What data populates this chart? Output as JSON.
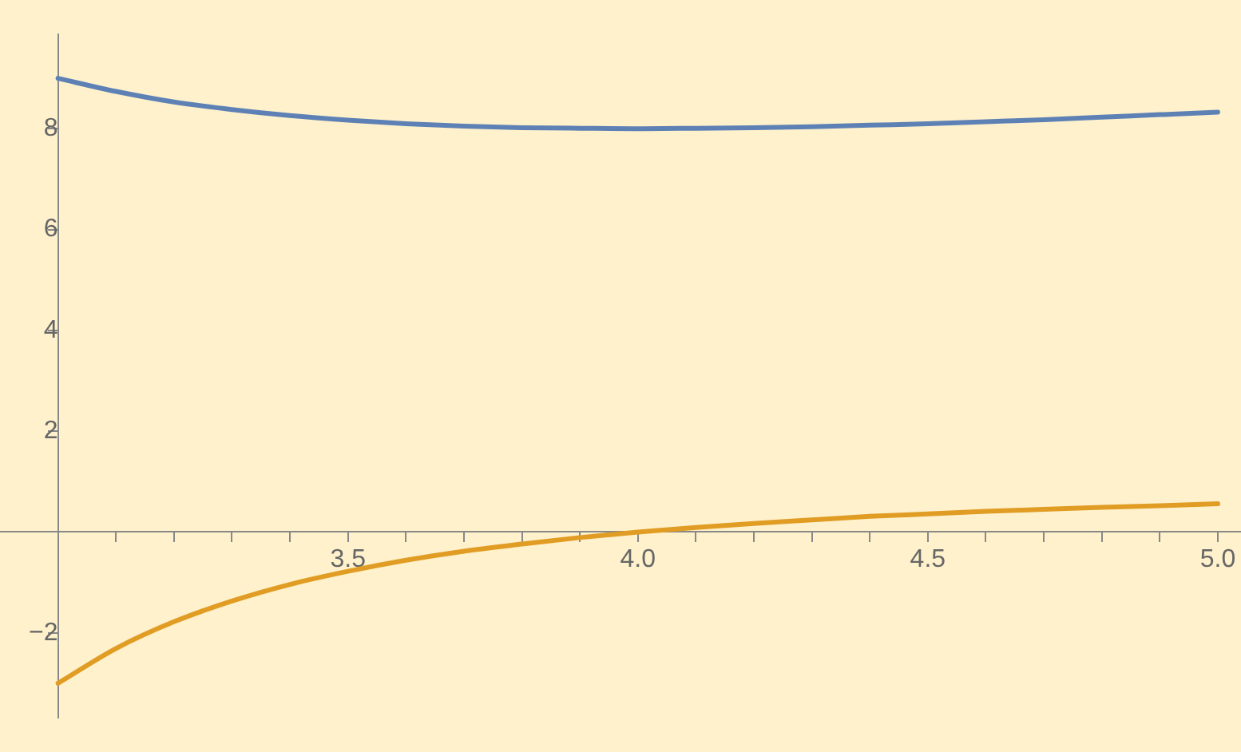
{
  "chart_data": {
    "type": "line",
    "x": [
      3.0,
      3.1,
      3.2,
      3.3,
      3.4,
      3.5,
      3.6,
      3.7,
      3.8,
      3.9,
      4.0,
      4.1,
      4.2,
      4.3,
      4.4,
      4.5,
      4.6,
      4.7,
      4.8,
      4.9,
      5.0
    ],
    "series": [
      {
        "color": "#5e81b5",
        "values": [
          9,
          8.74,
          8.53,
          8.38,
          8.26,
          8.17,
          8.1,
          8.05,
          8.02,
          8.01,
          8,
          8.01,
          8.02,
          8.04,
          8.07,
          8.1,
          8.14,
          8.18,
          8.23,
          8.28,
          8.33
        ]
      },
      {
        "color": "#e19c24",
        "values": [
          -3,
          -2.31,
          -1.78,
          -1.37,
          -1.04,
          -0.78,
          -0.56,
          -0.38,
          -0.24,
          -0.11,
          0,
          0.09,
          0.17,
          0.24,
          0.31,
          0.36,
          0.41,
          0.45,
          0.49,
          0.52,
          0.56
        ]
      }
    ],
    "xlim": [
      2.9,
      5.04
    ],
    "ylim": [
      -3.68,
      9.87
    ],
    "xticks": [
      {
        "value": 3.1,
        "label": null
      },
      {
        "value": 3.2,
        "label": null
      },
      {
        "value": 3.3,
        "label": null
      },
      {
        "value": 3.4,
        "label": null
      },
      {
        "value": 3.5,
        "label": "3.5"
      },
      {
        "value": 3.6,
        "label": null
      },
      {
        "value": 3.7,
        "label": null
      },
      {
        "value": 3.8,
        "label": null
      },
      {
        "value": 3.9,
        "label": null
      },
      {
        "value": 4,
        "label": "4.0"
      },
      {
        "value": 4.1,
        "label": null
      },
      {
        "value": 4.2,
        "label": null
      },
      {
        "value": 4.3,
        "label": null
      },
      {
        "value": 4.4,
        "label": null
      },
      {
        "value": 4.5,
        "label": "4.5"
      },
      {
        "value": 4.6,
        "label": null
      },
      {
        "value": 4.7,
        "label": null
      },
      {
        "value": 4.8,
        "label": null
      },
      {
        "value": 4.9,
        "label": null
      },
      {
        "value": 5,
        "label": "5.0"
      }
    ],
    "yticks": [
      -2,
      2,
      4,
      6,
      8
    ],
    "marker": "none",
    "line_style": "solid",
    "legend": false
  }
}
